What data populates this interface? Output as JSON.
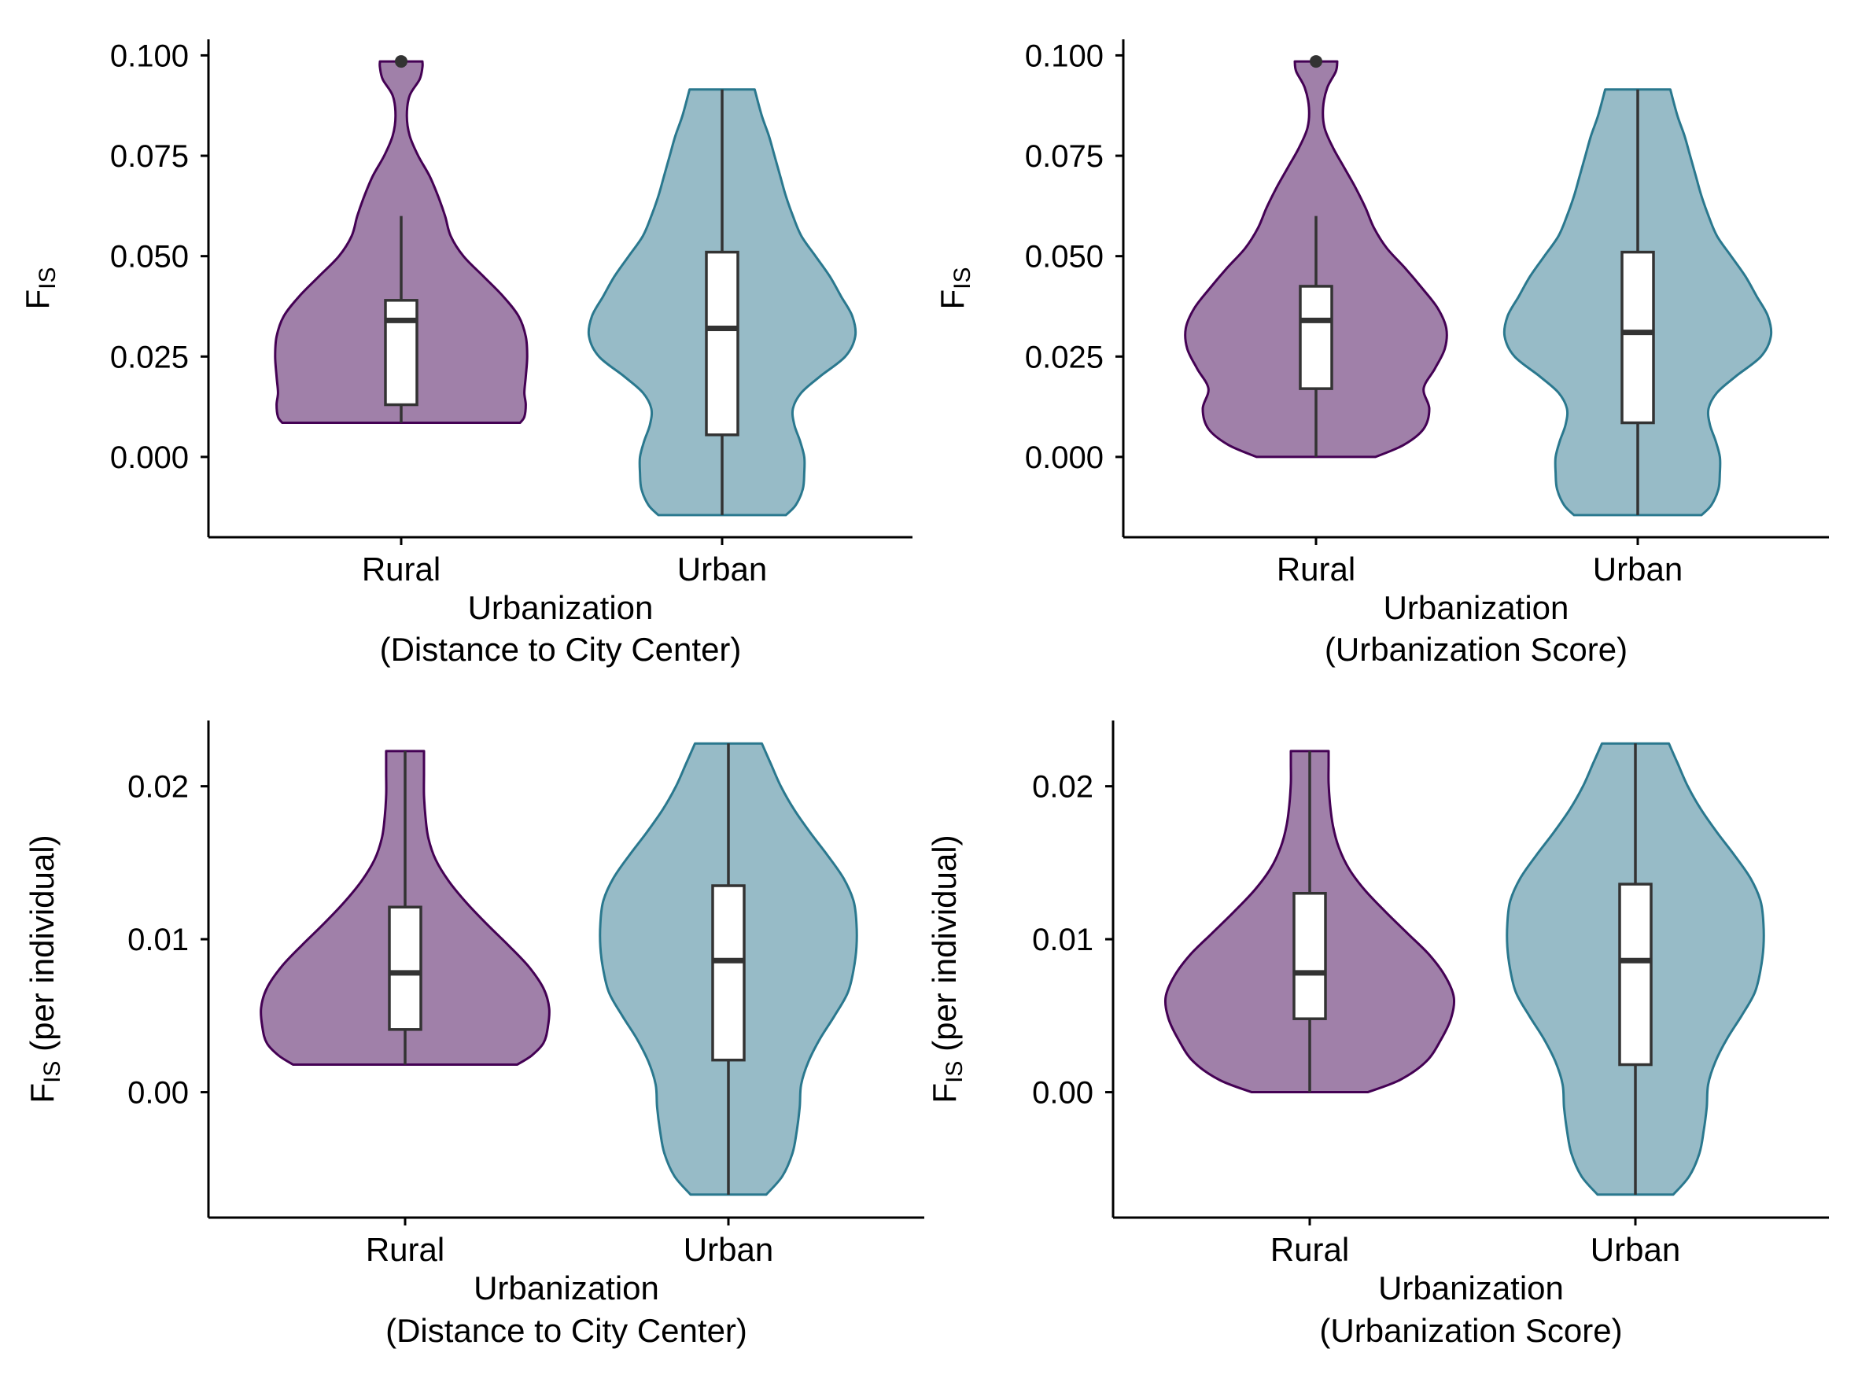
{
  "palette": {
    "rural_fill": "#A080A9",
    "rural_line": "#440154",
    "urban_fill": "#97BBC7",
    "urban_line": "#2A788E",
    "box_fill": "#ffffff",
    "box_line": "#333333"
  },
  "chart_data": [
    {
      "type": "violin",
      "categories": [
        "Rural",
        "Urban"
      ],
      "xlabel": "Urbanization",
      "xlabel2": "(Distance to City Center)",
      "ylabel_main": "F",
      "ylabel_sub": "IS",
      "ylabel_suffix": "",
      "yticks": [
        "0.000",
        "0.025",
        "0.050",
        "0.075",
        "0.100"
      ],
      "ylim": [
        -0.02,
        0.104
      ],
      "groups": [
        {
          "name": "Rural",
          "min": 0.0085,
          "q1": 0.013,
          "median": 0.034,
          "q3": 0.039,
          "whisker_max": 0.06,
          "max": 0.0985,
          "outliers": [
            0.0985
          ],
          "density_y": [
            0.0085,
            0.01,
            0.013,
            0.016,
            0.02,
            0.025,
            0.03,
            0.035,
            0.04,
            0.045,
            0.05,
            0.055,
            0.06,
            0.065,
            0.07,
            0.075,
            0.08,
            0.085,
            0.09,
            0.094,
            0.097,
            0.0985
          ],
          "density_w": [
            0.84,
            0.87,
            0.88,
            0.87,
            0.88,
            0.89,
            0.88,
            0.83,
            0.72,
            0.58,
            0.44,
            0.35,
            0.31,
            0.26,
            0.2,
            0.12,
            0.06,
            0.04,
            0.06,
            0.13,
            0.15,
            0.15
          ]
        },
        {
          "name": "Urban",
          "min": -0.0145,
          "q1": 0.0055,
          "median": 0.032,
          "q3": 0.051,
          "whisker_max": 0.0915,
          "max": 0.0915,
          "outliers": [],
          "density_y": [
            -0.0145,
            -0.012,
            -0.008,
            -0.004,
            0.0,
            0.004,
            0.008,
            0.012,
            0.016,
            0.02,
            0.025,
            0.03,
            0.035,
            0.04,
            0.045,
            0.05,
            0.055,
            0.06,
            0.065,
            0.07,
            0.075,
            0.08,
            0.085,
            0.0915
          ],
          "density_w": [
            0.45,
            0.52,
            0.57,
            0.58,
            0.58,
            0.55,
            0.51,
            0.5,
            0.56,
            0.69,
            0.87,
            0.94,
            0.92,
            0.84,
            0.76,
            0.66,
            0.56,
            0.5,
            0.45,
            0.41,
            0.37,
            0.33,
            0.28,
            0.23
          ]
        }
      ]
    },
    {
      "type": "violin",
      "categories": [
        "Rural",
        "Urban"
      ],
      "xlabel": "Urbanization",
      "xlabel2": "(Urbanization Score)",
      "ylabel_main": "F",
      "ylabel_sub": "IS",
      "ylabel_suffix": "",
      "yticks": [
        "0.000",
        "0.025",
        "0.050",
        "0.075",
        "0.100"
      ],
      "ylim": [
        -0.02,
        0.104
      ],
      "groups": [
        {
          "name": "Rural",
          "min": 0.0,
          "q1": 0.017,
          "median": 0.034,
          "q3": 0.0425,
          "whisker_max": 0.06,
          "max": 0.0985,
          "outliers": [
            0.0985
          ],
          "density_y": [
            0.0,
            0.003,
            0.007,
            0.012,
            0.017,
            0.022,
            0.027,
            0.032,
            0.037,
            0.042,
            0.047,
            0.052,
            0.057,
            0.062,
            0.067,
            0.072,
            0.077,
            0.082,
            0.087,
            0.092,
            0.096,
            0.0985
          ],
          "density_w": [
            0.42,
            0.62,
            0.76,
            0.8,
            0.76,
            0.84,
            0.91,
            0.92,
            0.86,
            0.75,
            0.63,
            0.5,
            0.41,
            0.35,
            0.28,
            0.2,
            0.12,
            0.06,
            0.05,
            0.08,
            0.14,
            0.15
          ]
        },
        {
          "name": "Urban",
          "min": -0.0145,
          "q1": 0.0085,
          "median": 0.031,
          "q3": 0.051,
          "whisker_max": 0.0915,
          "max": 0.0915,
          "outliers": [],
          "density_y": [
            -0.0145,
            -0.012,
            -0.008,
            -0.004,
            0.0,
            0.004,
            0.008,
            0.012,
            0.016,
            0.02,
            0.025,
            0.03,
            0.035,
            0.04,
            0.045,
            0.05,
            0.055,
            0.06,
            0.065,
            0.07,
            0.075,
            0.08,
            0.085,
            0.0915
          ],
          "density_w": [
            0.45,
            0.52,
            0.57,
            0.58,
            0.58,
            0.55,
            0.51,
            0.5,
            0.56,
            0.69,
            0.87,
            0.94,
            0.92,
            0.84,
            0.76,
            0.66,
            0.56,
            0.5,
            0.45,
            0.41,
            0.37,
            0.33,
            0.28,
            0.23
          ]
        }
      ]
    },
    {
      "type": "violin",
      "categories": [
        "Rural",
        "Urban"
      ],
      "xlabel": "Urbanization",
      "xlabel2": "(Distance to City Center)",
      "ylabel_main": "F",
      "ylabel_sub": "IS",
      "ylabel_suffix": " (per individual)",
      "yticks": [
        "0.00",
        "0.01",
        "0.02"
      ],
      "ylim": [
        -0.0082,
        0.0243
      ],
      "groups": [
        {
          "name": "Rural",
          "min": 0.0018,
          "q1": 0.0041,
          "median": 0.0078,
          "q3": 0.0121,
          "whisker_max": 0.0223,
          "max": 0.0223,
          "outliers": [],
          "density_y": [
            0.0018,
            0.0024,
            0.0032,
            0.0042,
            0.0055,
            0.0068,
            0.0082,
            0.0096,
            0.011,
            0.0124,
            0.0138,
            0.0152,
            0.0166,
            0.018,
            0.0194,
            0.0208,
            0.0218,
            0.0223
          ],
          "density_w": [
            0.77,
            0.87,
            0.95,
            0.98,
            0.99,
            0.95,
            0.85,
            0.71,
            0.56,
            0.42,
            0.3,
            0.21,
            0.16,
            0.14,
            0.13,
            0.13,
            0.13,
            0.13
          ]
        },
        {
          "name": "Urban",
          "min": -0.0067,
          "q1": 0.0021,
          "median": 0.0086,
          "q3": 0.0135,
          "whisker_max": 0.0228,
          "max": 0.0228,
          "outliers": [],
          "density_y": [
            -0.0067,
            -0.0055,
            -0.004,
            -0.0025,
            -0.001,
            0.0005,
            0.002,
            0.0035,
            0.005,
            0.0065,
            0.008,
            0.0095,
            0.011,
            0.0125,
            0.014,
            0.0155,
            0.017,
            0.0185,
            0.02,
            0.0215,
            0.0228
          ],
          "density_w": [
            0.26,
            0.37,
            0.44,
            0.47,
            0.49,
            0.5,
            0.55,
            0.63,
            0.73,
            0.82,
            0.86,
            0.88,
            0.88,
            0.86,
            0.79,
            0.68,
            0.56,
            0.45,
            0.36,
            0.29,
            0.23
          ]
        }
      ]
    },
    {
      "type": "violin",
      "categories": [
        "Rural",
        "Urban"
      ],
      "xlabel": "Urbanization",
      "xlabel2": "(Urbanization Score)",
      "ylabel_main": "F",
      "ylabel_sub": "IS",
      "ylabel_suffix": " (per individual)",
      "yticks": [
        "0.00",
        "0.01",
        "0.02"
      ],
      "ylim": [
        -0.0082,
        0.0243
      ],
      "groups": [
        {
          "name": "Rural",
          "min": 0.0,
          "q1": 0.0048,
          "median": 0.0078,
          "q3": 0.013,
          "whisker_max": 0.0223,
          "max": 0.0223,
          "outliers": [],
          "density_y": [
            0.0,
            0.0008,
            0.002,
            0.0034,
            0.0048,
            0.0062,
            0.0076,
            0.009,
            0.0104,
            0.0118,
            0.0132,
            0.0146,
            0.016,
            0.0174,
            0.0188,
            0.0202,
            0.0214,
            0.0223
          ],
          "density_w": [
            0.4,
            0.62,
            0.8,
            0.9,
            0.97,
            0.99,
            0.93,
            0.82,
            0.67,
            0.52,
            0.38,
            0.27,
            0.2,
            0.16,
            0.14,
            0.13,
            0.13,
            0.13
          ]
        },
        {
          "name": "Urban",
          "min": -0.0067,
          "q1": 0.0018,
          "median": 0.0086,
          "q3": 0.0136,
          "whisker_max": 0.0228,
          "max": 0.0228,
          "outliers": [],
          "density_y": [
            -0.0067,
            -0.0055,
            -0.004,
            -0.0025,
            -0.001,
            0.0005,
            0.002,
            0.0035,
            0.005,
            0.0065,
            0.008,
            0.0095,
            0.011,
            0.0125,
            0.014,
            0.0155,
            0.017,
            0.0185,
            0.02,
            0.0215,
            0.0228
          ],
          "density_w": [
            0.26,
            0.37,
            0.44,
            0.47,
            0.49,
            0.5,
            0.55,
            0.63,
            0.73,
            0.82,
            0.86,
            0.88,
            0.88,
            0.86,
            0.79,
            0.68,
            0.56,
            0.45,
            0.36,
            0.29,
            0.23
          ]
        }
      ]
    }
  ]
}
